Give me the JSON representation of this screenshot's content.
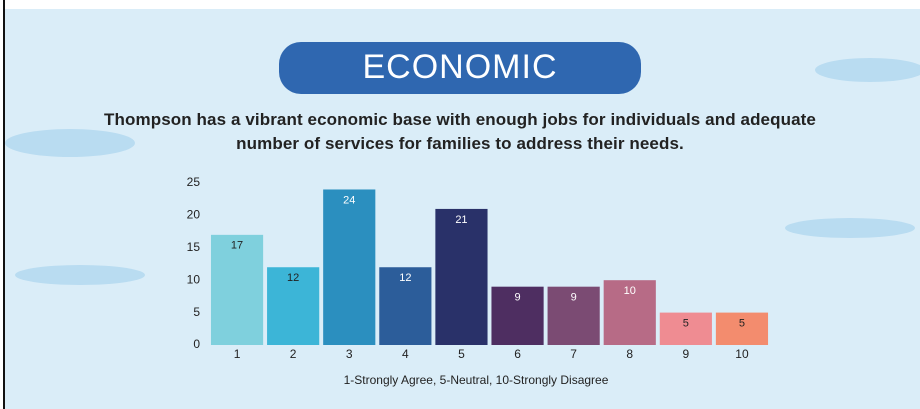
{
  "chart_data": {
    "type": "bar",
    "title": "ECONOMIC",
    "subtitle": "Thompson has a vibrant economic base with enough jobs for individuals and adequate number of services for families to address their needs.",
    "x_label": "1-Strongly Agree, 5-Neutral, 10-Strongly Disagree",
    "categories": [
      "1",
      "2",
      "3",
      "4",
      "5",
      "6",
      "7",
      "8",
      "9",
      "10"
    ],
    "values": [
      17,
      12,
      24,
      12,
      21,
      9,
      9,
      10,
      5,
      5
    ],
    "colors": [
      "#7fd0dd",
      "#3cb5d7",
      "#2b8fbf",
      "#2c5d9a",
      "#293169",
      "#4e2e61",
      "#7b4b73",
      "#b76b86",
      "#ef8c92",
      "#f38c6e"
    ],
    "ylim": [
      0,
      25
    ],
    "yticks": [
      0,
      5,
      10,
      15,
      20,
      25
    ],
    "grid": false
  }
}
